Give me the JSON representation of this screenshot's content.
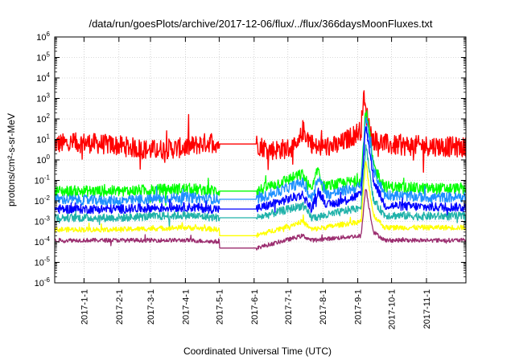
{
  "chart_data": {
    "type": "line",
    "title": "/data/run/goesPlots/archive/2017-12-06/flux/../flux/366daysMoonFluxes.txt",
    "xlabel": "Coordinated Universal Time (UTC)",
    "ylabel": "protons/cm²-s-sr-MeV",
    "y_scale": "log",
    "ylim": [
      1e-06,
      1000000.0
    ],
    "xlim": [
      "2016-12-06",
      "2017-12-06"
    ],
    "y_tick_labels": [
      {
        "base": "10",
        "exp": "-6"
      },
      {
        "base": "10",
        "exp": "-5"
      },
      {
        "base": "10",
        "exp": "-4"
      },
      {
        "base": "10",
        "exp": "-3"
      },
      {
        "base": "10",
        "exp": "-2"
      },
      {
        "base": "10",
        "exp": "-1"
      },
      {
        "base": "10",
        "exp": "0"
      },
      {
        "base": "10",
        "exp": "1"
      },
      {
        "base": "10",
        "exp": "2"
      },
      {
        "base": "10",
        "exp": "3"
      },
      {
        "base": "10",
        "exp": "4"
      },
      {
        "base": "10",
        "exp": "5"
      },
      {
        "base": "10",
        "exp": "6"
      }
    ],
    "x_tick_labels": [
      "2017-1-1",
      "2017-2-1",
      "2017-3-1",
      "2017-4-1",
      "2017-5-1",
      "2017-6-1",
      "2017-7-1",
      "2017-8-1",
      "2017-9-1",
      "2017-10-1",
      "2017-11-1"
    ],
    "grid": true,
    "data_gap": [
      "2017-05-01",
      "2017-06-03"
    ],
    "series": [
      {
        "color": "#ff0000",
        "values": [
          [
            "2016-12-06",
            6
          ],
          [
            "2017-01-01",
            7
          ],
          [
            "2017-02-01",
            5
          ],
          [
            "2017-03-01",
            3
          ],
          [
            "2017-04-01",
            4
          ],
          [
            "2017-04-25",
            8
          ],
          [
            "2017-05-01",
            6
          ],
          [
            "2017-06-03",
            6
          ],
          [
            "2017-06-15",
            3
          ],
          [
            "2017-07-10",
            4
          ],
          [
            "2017-07-14",
            30
          ],
          [
            "2017-07-25",
            4
          ],
          [
            "2017-08-15",
            5
          ],
          [
            "2017-09-04",
            30
          ],
          [
            "2017-09-06",
            1500
          ],
          [
            "2017-09-08",
            200
          ],
          [
            "2017-09-10",
            100
          ],
          [
            "2017-09-14",
            10
          ],
          [
            "2017-10-01",
            5
          ],
          [
            "2017-11-01",
            5
          ],
          [
            "2017-12-06",
            4
          ]
        ]
      },
      {
        "color": "#00ff00",
        "values": [
          [
            "2016-12-06",
            0.03
          ],
          [
            "2017-02-01",
            0.03
          ],
          [
            "2017-04-01",
            0.04
          ],
          [
            "2017-05-01",
            0.03
          ],
          [
            "2017-06-03",
            0.03
          ],
          [
            "2017-07-14",
            0.2
          ],
          [
            "2017-07-22",
            0.03
          ],
          [
            "2017-07-28",
            0.4
          ],
          [
            "2017-08-01",
            0.05
          ],
          [
            "2017-09-04",
            0.1
          ],
          [
            "2017-09-08",
            300
          ],
          [
            "2017-09-11",
            30
          ],
          [
            "2017-09-15",
            0.5
          ],
          [
            "2017-09-25",
            0.05
          ],
          [
            "2017-11-01",
            0.04
          ],
          [
            "2017-12-06",
            0.04
          ]
        ]
      },
      {
        "color": "#1e90ff",
        "values": [
          [
            "2016-12-06",
            0.012
          ],
          [
            "2017-02-01",
            0.01
          ],
          [
            "2017-04-01",
            0.015
          ],
          [
            "2017-05-01",
            0.012
          ],
          [
            "2017-06-03",
            0.012
          ],
          [
            "2017-07-14",
            0.08
          ],
          [
            "2017-07-22",
            0.012
          ],
          [
            "2017-07-28",
            0.15
          ],
          [
            "2017-08-05",
            0.02
          ],
          [
            "2017-09-04",
            0.05
          ],
          [
            "2017-09-08",
            150
          ],
          [
            "2017-09-11",
            15
          ],
          [
            "2017-09-15",
            0.3
          ],
          [
            "2017-09-25",
            0.02
          ],
          [
            "2017-11-01",
            0.015
          ],
          [
            "2017-12-06",
            0.015
          ]
        ]
      },
      {
        "color": "#0000ff",
        "values": [
          [
            "2016-12-06",
            0.004
          ],
          [
            "2017-02-01",
            0.004
          ],
          [
            "2017-04-01",
            0.005
          ],
          [
            "2017-05-01",
            0.004
          ],
          [
            "2017-06-03",
            0.004
          ],
          [
            "2017-07-14",
            0.02
          ],
          [
            "2017-07-22",
            0.004
          ],
          [
            "2017-07-28",
            0.03
          ],
          [
            "2017-08-05",
            0.006
          ],
          [
            "2017-09-04",
            0.02
          ],
          [
            "2017-09-08",
            50
          ],
          [
            "2017-09-11",
            5
          ],
          [
            "2017-09-15",
            0.1
          ],
          [
            "2017-09-25",
            0.006
          ],
          [
            "2017-11-01",
            0.005
          ],
          [
            "2017-12-06",
            0.005
          ]
        ]
      },
      {
        "color": "#20b2aa",
        "values": [
          [
            "2016-12-06",
            0.0015
          ],
          [
            "2017-02-01",
            0.0015
          ],
          [
            "2017-04-01",
            0.002
          ],
          [
            "2017-05-01",
            0.0015
          ],
          [
            "2017-06-03",
            0.0015
          ],
          [
            "2017-07-14",
            0.006
          ],
          [
            "2017-07-22",
            0.0015
          ],
          [
            "2017-08-05",
            0.002
          ],
          [
            "2017-09-04",
            0.005
          ],
          [
            "2017-09-08",
            5
          ],
          [
            "2017-09-11",
            0.5
          ],
          [
            "2017-09-15",
            0.01
          ],
          [
            "2017-09-25",
            0.002
          ],
          [
            "2017-11-01",
            0.0018
          ],
          [
            "2017-12-06",
            0.0018
          ]
        ]
      },
      {
        "color": "#ffff00",
        "values": [
          [
            "2016-12-06",
            0.0004
          ],
          [
            "2017-02-01",
            0.0004
          ],
          [
            "2017-04-01",
            0.0005
          ],
          [
            "2017-05-01",
            0.0004
          ],
          [
            "2017-06-03",
            0.0002
          ],
          [
            "2017-07-14",
            0.001
          ],
          [
            "2017-07-22",
            0.0004
          ],
          [
            "2017-09-04",
            0.001
          ],
          [
            "2017-09-08",
            1
          ],
          [
            "2017-09-11",
            0.05
          ],
          [
            "2017-09-15",
            0.002
          ],
          [
            "2017-09-25",
            0.0005
          ],
          [
            "2017-11-01",
            0.0005
          ],
          [
            "2017-12-06",
            0.0005
          ]
        ]
      },
      {
        "color": "#9b2d6f",
        "values": [
          [
            "2016-12-06",
            0.00012
          ],
          [
            "2017-02-01",
            0.00012
          ],
          [
            "2017-04-01",
            0.00012
          ],
          [
            "2017-05-01",
            0.0001
          ],
          [
            "2017-06-03",
            5e-05
          ],
          [
            "2017-07-14",
            0.0002
          ],
          [
            "2017-07-22",
            0.00012
          ],
          [
            "2017-09-04",
            0.0002
          ],
          [
            "2017-09-08",
            0.05
          ],
          [
            "2017-09-11",
            0.005
          ],
          [
            "2017-09-15",
            0.0003
          ],
          [
            "2017-09-25",
            0.00012
          ],
          [
            "2017-11-01",
            0.00012
          ],
          [
            "2017-12-06",
            0.00012
          ]
        ]
      }
    ]
  }
}
